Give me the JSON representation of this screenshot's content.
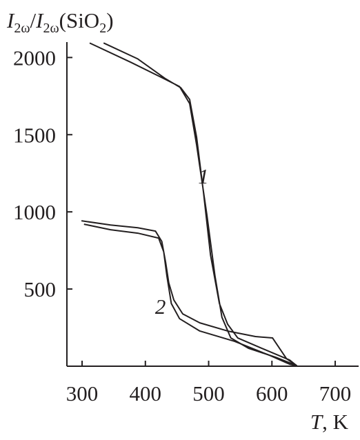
{
  "chart_data": {
    "type": "line",
    "y_label": [
      "I",
      "2ω",
      "/",
      "I",
      "2ω",
      "(SiO",
      "2",
      ")"
    ],
    "x_label": [
      "T",
      ", K"
    ],
    "xlim": [
      276,
      737
    ],
    "xticks": [
      300,
      400,
      500,
      600,
      700
    ],
    "ylim": [
      0,
      2100
    ],
    "yticks": [
      500,
      1000,
      1500,
      2000
    ],
    "color": "#231f20",
    "series": [
      {
        "name": "1",
        "x": [
          334,
          388,
          432,
          456,
          470,
          481,
          492,
          503,
          517,
          530,
          546,
          584,
          628,
          639,
          606,
          563,
          535,
          521,
          510,
          497,
          481,
          470,
          454,
          426,
          377,
          312
        ],
        "values": [
          2094,
          1991,
          1862,
          1804,
          1728,
          1483,
          1121,
          719,
          406,
          272,
          183,
          116,
          40,
          4,
          58,
          116,
          183,
          317,
          585,
          987,
          1433,
          1701,
          1812,
          1870,
          1969,
          2094
        ]
      },
      {
        "name": "2",
        "x": [
          299,
          345,
          388,
          416,
          426,
          432,
          437,
          445,
          459,
          486,
          530,
          574,
          601,
          612,
          623,
          639,
          628,
          596,
          541,
          486,
          454,
          441,
          434,
          429,
          421,
          388,
          345,
          303
        ],
        "values": [
          942,
          915,
          897,
          875,
          808,
          674,
          540,
          429,
          339,
          281,
          228,
          192,
          183,
          116,
          49,
          4,
          13,
          71,
          161,
          228,
          308,
          406,
          585,
          741,
          830,
          862,
          884,
          920
        ]
      }
    ]
  }
}
